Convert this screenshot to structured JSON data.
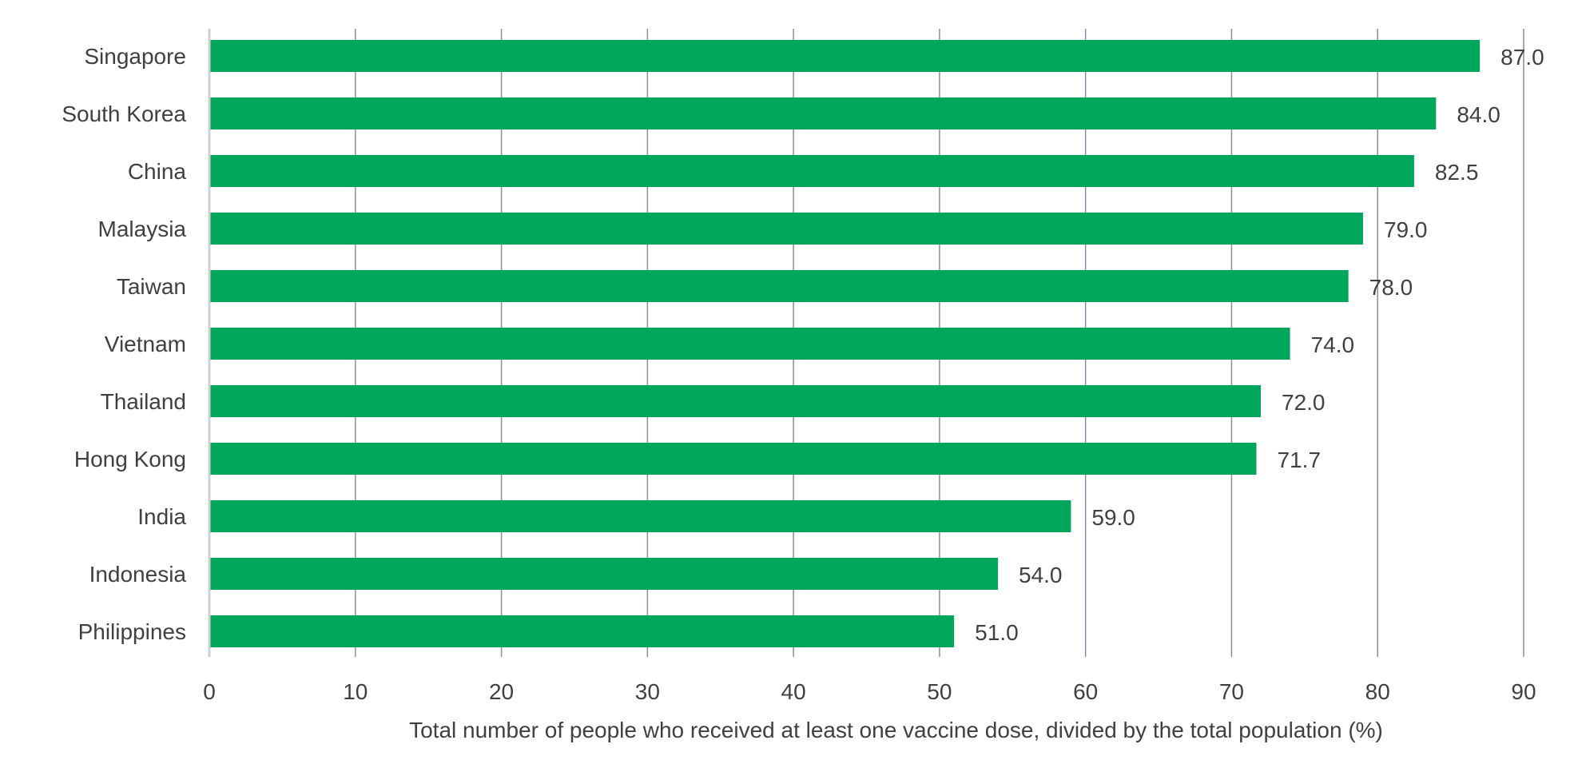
{
  "chart_data": {
    "type": "bar",
    "orientation": "horizontal",
    "title": "",
    "ylabel": "",
    "xlabel": "Total number of people who received at least one vaccine dose, divided by the total population (%)",
    "categories": [
      "Singapore",
      "South Korea",
      "China",
      "Malaysia",
      "Taiwan",
      "Vietnam",
      "Thailand",
      "Hong Kong",
      "India",
      "Indonesia",
      "Philippines"
    ],
    "values": [
      87.0,
      84.0,
      82.5,
      79.0,
      78.0,
      74.0,
      72.0,
      71.7,
      59.0,
      54.0,
      51.0
    ],
    "value_labels": [
      "87.0",
      "84.0",
      "82.5",
      "79.0",
      "78.0",
      "74.0",
      "72.0",
      "71.7",
      "59.0",
      "54.0",
      "51.0"
    ],
    "xlim": [
      0,
      90
    ],
    "xticks": [
      0,
      10,
      20,
      30,
      40,
      50,
      60,
      70,
      80,
      90
    ],
    "grid": "vertical",
    "legend": "none",
    "colors": {
      "bar": "#00a65a",
      "grid": "#8c8ca0",
      "text": "#404040",
      "axis": "#d0d0d0"
    }
  }
}
